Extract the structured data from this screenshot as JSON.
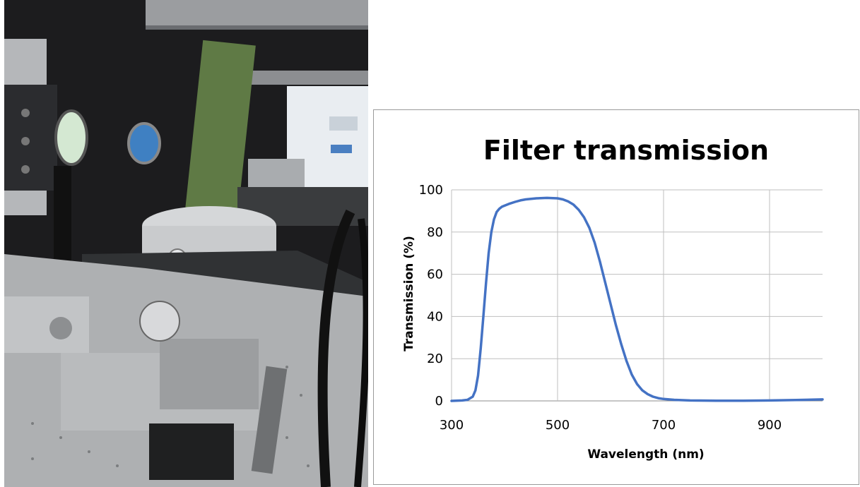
{
  "photo": {
    "description_icon": "lab-optical-setup-photo"
  },
  "chart_data": {
    "type": "line",
    "title": "Filter transmission",
    "xlabel": "Wavelength (nm)",
    "ylabel": "Transmission (%)",
    "xlim": [
      300,
      1000
    ],
    "ylim": [
      0,
      100
    ],
    "xticks": [
      300,
      500,
      700,
      900
    ],
    "yticks": [
      0,
      20,
      40,
      60,
      80,
      100
    ],
    "grid": true,
    "series": [
      {
        "color": "#4472c4",
        "x": [
          300,
          320,
          330,
          340,
          345,
          350,
          355,
          360,
          365,
          370,
          375,
          380,
          385,
          390,
          395,
          400,
          410,
          420,
          430,
          440,
          460,
          480,
          500,
          510,
          520,
          530,
          540,
          550,
          560,
          570,
          580,
          590,
          600,
          610,
          620,
          630,
          640,
          650,
          660,
          670,
          680,
          690,
          700,
          720,
          750,
          800,
          850,
          900,
          950,
          1000
        ],
        "y": [
          0,
          0.2,
          0.5,
          2,
          5,
          12,
          25,
          40,
          56,
          70,
          80,
          86,
          89.5,
          91,
          92,
          92.5,
          93.5,
          94.3,
          95,
          95.5,
          96,
          96.2,
          96,
          95.5,
          94.5,
          93,
          90.5,
          87,
          82,
          75,
          66,
          56,
          46,
          36,
          27,
          19,
          12.5,
          8,
          5,
          3.2,
          2,
          1.3,
          0.9,
          0.5,
          0.2,
          0.1,
          0.1,
          0.2,
          0.4,
          0.7
        ]
      }
    ]
  }
}
